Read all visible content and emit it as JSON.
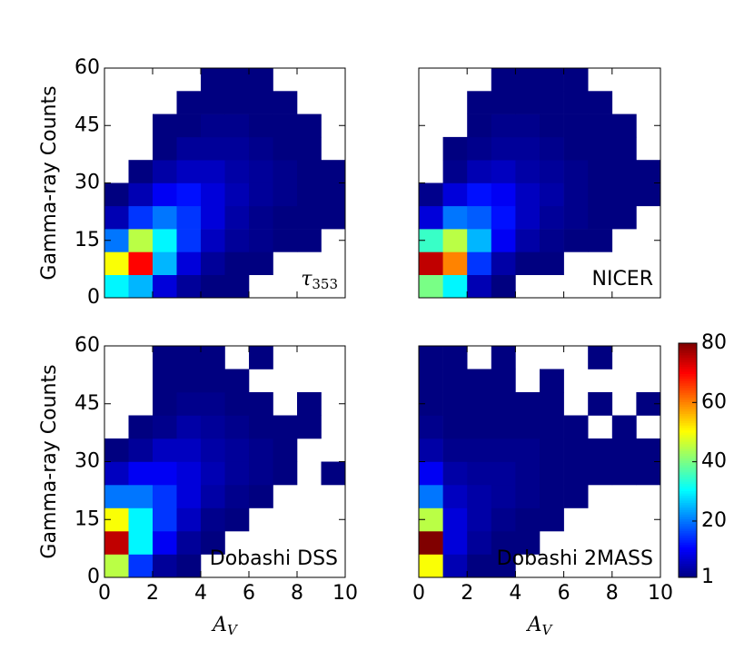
{
  "chart_data": [
    {
      "type": "heatmap",
      "annotation": "τ",
      "annotation_sub": "353",
      "ylabel": "Gamma-ray Counts",
      "xlim": [
        0,
        10
      ],
      "ylim": [
        0,
        60
      ],
      "xticks": [
        0,
        2,
        4,
        6,
        8,
        10
      ],
      "yticks": [
        0,
        15,
        30,
        45,
        60
      ],
      "xbins": [
        0,
        1,
        2,
        3,
        4,
        5,
        6,
        7,
        8,
        9,
        10
      ],
      "ybins": [
        0,
        6,
        12,
        18,
        24,
        30,
        36,
        42,
        48,
        54,
        60
      ],
      "values": [
        [
          30,
          25,
          8,
          3,
          1,
          1,
          null,
          null,
          null,
          null
        ],
        [
          50,
          70,
          25,
          8,
          3,
          1,
          1,
          null,
          null,
          null
        ],
        [
          20,
          45,
          30,
          15,
          6,
          3,
          2,
          1,
          1,
          null
        ],
        [
          5,
          15,
          20,
          15,
          8,
          4,
          2,
          1,
          1,
          1
        ],
        [
          1,
          5,
          10,
          12,
          8,
          5,
          3,
          2,
          1,
          1
        ],
        [
          null,
          1,
          4,
          6,
          6,
          4,
          3,
          2,
          1,
          1
        ],
        [
          null,
          null,
          1,
          3,
          3,
          3,
          2,
          1,
          1,
          null
        ],
        [
          null,
          null,
          1,
          1,
          2,
          2,
          1,
          1,
          1,
          null
        ],
        [
          null,
          null,
          null,
          1,
          1,
          1,
          1,
          1,
          null,
          null
        ],
        [
          null,
          null,
          null,
          null,
          1,
          1,
          1,
          null,
          null,
          null
        ]
      ]
    },
    {
      "type": "heatmap",
      "annotation": "NICER",
      "xlim": [
        0,
        10
      ],
      "ylim": [
        0,
        60
      ],
      "xticks": [
        0,
        2,
        4,
        6,
        8,
        10
      ],
      "yticks": [
        0,
        15,
        30,
        45,
        60
      ],
      "xbins": [
        0,
        1,
        2,
        3,
        4,
        5,
        6,
        7,
        8,
        9,
        10
      ],
      "ybins": [
        0,
        6,
        12,
        18,
        24,
        30,
        36,
        42,
        48,
        54,
        60
      ],
      "values": [
        [
          40,
          30,
          5,
          1,
          null,
          null,
          null,
          null,
          null,
          null
        ],
        [
          75,
          60,
          15,
          4,
          1,
          1,
          null,
          null,
          null,
          null
        ],
        [
          35,
          45,
          25,
          10,
          4,
          2,
          1,
          1,
          null,
          null
        ],
        [
          8,
          20,
          18,
          12,
          6,
          3,
          2,
          1,
          1,
          null
        ],
        [
          2,
          8,
          12,
          10,
          6,
          4,
          2,
          1,
          1,
          1
        ],
        [
          null,
          2,
          5,
          6,
          4,
          3,
          2,
          1,
          1,
          1
        ],
        [
          null,
          1,
          2,
          3,
          3,
          2,
          1,
          1,
          1,
          null
        ],
        [
          null,
          null,
          1,
          2,
          2,
          1,
          1,
          1,
          1,
          null
        ],
        [
          null,
          null,
          1,
          1,
          1,
          1,
          1,
          1,
          null,
          null
        ],
        [
          null,
          null,
          null,
          1,
          1,
          1,
          1,
          null,
          null,
          null
        ]
      ]
    },
    {
      "type": "heatmap",
      "annotation": "Dobashi DSS",
      "ylabel": "Gamma-ray Counts",
      "xlabel": "A",
      "xlabel_sub": "V",
      "xlim": [
        0,
        10
      ],
      "ylim": [
        0,
        60
      ],
      "xticks": [
        0,
        2,
        4,
        6,
        8,
        10
      ],
      "yticks": [
        0,
        15,
        30,
        45,
        60
      ],
      "xbins": [
        0,
        1,
        2,
        3,
        4,
        5,
        6,
        7,
        8,
        9,
        10
      ],
      "ybins": [
        0,
        6,
        12,
        18,
        24,
        30,
        36,
        42,
        48,
        54,
        60
      ],
      "values": [
        [
          45,
          15,
          3,
          1,
          null,
          null,
          null,
          null,
          null,
          null
        ],
        [
          75,
          30,
          10,
          3,
          1,
          null,
          null,
          null,
          null,
          null
        ],
        [
          50,
          30,
          15,
          6,
          2,
          1,
          null,
          null,
          null,
          null
        ],
        [
          20,
          20,
          15,
          8,
          4,
          2,
          1,
          null,
          null,
          null
        ],
        [
          6,
          10,
          10,
          8,
          5,
          3,
          2,
          1,
          null,
          1
        ],
        [
          1,
          3,
          6,
          6,
          4,
          3,
          2,
          1,
          null,
          null
        ],
        [
          null,
          1,
          2,
          4,
          3,
          2,
          1,
          1,
          1,
          null
        ],
        [
          null,
          null,
          1,
          2,
          2,
          1,
          1,
          null,
          1,
          null
        ],
        [
          null,
          null,
          1,
          1,
          1,
          1,
          null,
          null,
          null,
          null
        ],
        [
          null,
          null,
          1,
          1,
          1,
          null,
          1,
          null,
          null,
          null
        ]
      ]
    },
    {
      "type": "heatmap",
      "annotation": "Dobashi 2MASS",
      "xlabel": "A",
      "xlabel_sub": "V",
      "xlim": [
        0,
        10
      ],
      "ylim": [
        0,
        60
      ],
      "xticks": [
        0,
        2,
        4,
        6,
        8,
        10
      ],
      "yticks": [
        0,
        15,
        30,
        45,
        60
      ],
      "xbins": [
        0,
        1,
        2,
        3,
        4,
        5,
        6,
        7,
        8,
        9,
        10
      ],
      "ybins": [
        0,
        6,
        12,
        18,
        24,
        30,
        36,
        42,
        48,
        54,
        60
      ],
      "values": [
        [
          50,
          5,
          1,
          1,
          null,
          null,
          null,
          null,
          null,
          null
        ],
        [
          80,
          8,
          3,
          1,
          1,
          null,
          null,
          null,
          null,
          null
        ],
        [
          45,
          8,
          4,
          2,
          1,
          1,
          null,
          null,
          null,
          null
        ],
        [
          20,
          6,
          4,
          3,
          2,
          1,
          1,
          null,
          null,
          null
        ],
        [
          10,
          4,
          3,
          3,
          2,
          1,
          1,
          1,
          1,
          1
        ],
        [
          4,
          2,
          2,
          2,
          2,
          1,
          1,
          1,
          1,
          1
        ],
        [
          2,
          1,
          1,
          1,
          1,
          1,
          1,
          null,
          1,
          null
        ],
        [
          1,
          1,
          1,
          1,
          1,
          1,
          null,
          1,
          null,
          1
        ],
        [
          1,
          1,
          1,
          1,
          null,
          1,
          null,
          null,
          null,
          null
        ],
        [
          1,
          1,
          null,
          1,
          null,
          null,
          null,
          1,
          null,
          null
        ]
      ]
    }
  ],
  "colorbar": {
    "colormap": "jet",
    "lim": [
      1,
      80
    ],
    "ticks": [
      1,
      20,
      40,
      60,
      80
    ]
  }
}
